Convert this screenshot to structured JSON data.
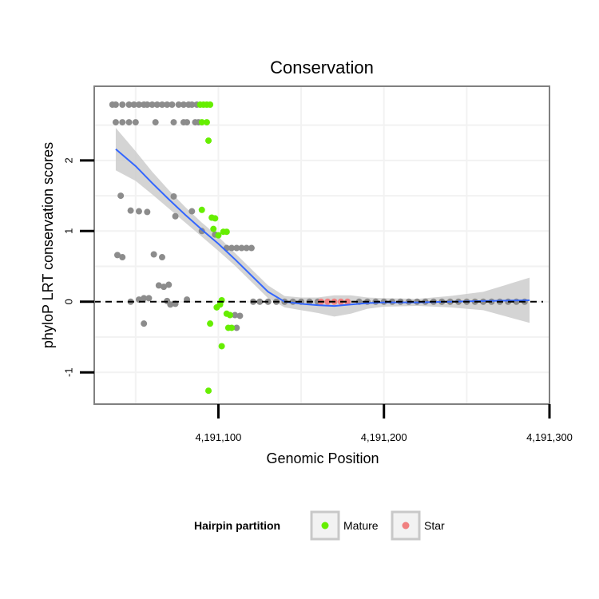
{
  "chart_data": {
    "type": "scatter",
    "title": "Conservation",
    "xlabel": "Genomic Position",
    "ylabel": "phyloP LRT conservation scores",
    "xlim": [
      4191025,
      4191300
    ],
    "ylim": [
      -1.45,
      3.05
    ],
    "x_ticks": [
      {
        "value": 4191100,
        "label": "4,191,100"
      },
      {
        "value": 4191200,
        "label": "4,191,200"
      },
      {
        "value": 4191300,
        "label": "4,191,300"
      }
    ],
    "y_ticks": [
      {
        "value": -1,
        "label": "-1"
      },
      {
        "value": 0,
        "label": "0"
      },
      {
        "value": 1,
        "label": "1"
      },
      {
        "value": 2,
        "label": "2"
      }
    ],
    "reference_line": {
      "y": 0,
      "style": "dashed"
    },
    "colors": {
      "other": "#8c8c8c",
      "mature": "#66ee00",
      "star": "#f08080",
      "smooth_line": "#3366ff",
      "ribbon": "#cccccc",
      "ref_line": "#000000",
      "panel_border": "#808080",
      "grid": "#f2f2f2"
    },
    "legend": {
      "title": "Hairpin partition",
      "position": "bottom",
      "entries": [
        {
          "label": "Mature",
          "color": "#66ee00"
        },
        {
          "label": "Star",
          "color": "#f08080"
        }
      ]
    },
    "series": [
      {
        "name": "Other",
        "points": [
          [
            4191036,
            2.79
          ],
          [
            4191038,
            2.79
          ],
          [
            4191042,
            2.79
          ],
          [
            4191046,
            2.79
          ],
          [
            4191049,
            2.79
          ],
          [
            4191052,
            2.79
          ],
          [
            4191055,
            2.79
          ],
          [
            4191057,
            2.79
          ],
          [
            4191060,
            2.79
          ],
          [
            4191063,
            2.79
          ],
          [
            4191066,
            2.79
          ],
          [
            4191069,
            2.79
          ],
          [
            4191072,
            2.79
          ],
          [
            4191076,
            2.79
          ],
          [
            4191079,
            2.79
          ],
          [
            4191082,
            2.79
          ],
          [
            4191084,
            2.79
          ],
          [
            4191087,
            2.79
          ],
          [
            4191038,
            2.54
          ],
          [
            4191042,
            2.54
          ],
          [
            4191046,
            2.54
          ],
          [
            4191050,
            2.54
          ],
          [
            4191062,
            2.54
          ],
          [
            4191073,
            2.54
          ],
          [
            4191079,
            2.54
          ],
          [
            4191081,
            2.54
          ],
          [
            4191086,
            2.54
          ],
          [
            4191088,
            2.54
          ],
          [
            4191041,
            1.5
          ],
          [
            4191073,
            1.49
          ],
          [
            4191047,
            1.29
          ],
          [
            4191052,
            1.28
          ],
          [
            4191057,
            1.27
          ],
          [
            4191074,
            1.21
          ],
          [
            4191084,
            1.28
          ],
          [
            4191090,
            1.0
          ],
          [
            4191098,
            0.95
          ],
          [
            4191105,
            0.76
          ],
          [
            4191108,
            0.76
          ],
          [
            4191111,
            0.76
          ],
          [
            4191114,
            0.76
          ],
          [
            4191117,
            0.76
          ],
          [
            4191120,
            0.76
          ],
          [
            4191039,
            0.66
          ],
          [
            4191042,
            0.63
          ],
          [
            4191066,
            0.63
          ],
          [
            4191061,
            0.67
          ],
          [
            4191064,
            0.23
          ],
          [
            4191067,
            0.21
          ],
          [
            4191070,
            0.24
          ],
          [
            4191052,
            0.03
          ],
          [
            4191055,
            0.05
          ],
          [
            4191058,
            0.05
          ],
          [
            4191047,
            0.0
          ],
          [
            4191069,
            0.01
          ],
          [
            4191071,
            -0.04
          ],
          [
            4191074,
            -0.03
          ],
          [
            4191081,
            0.03
          ],
          [
            4191055,
            -0.31
          ],
          [
            4191110,
            -0.19
          ],
          [
            4191113,
            -0.2
          ],
          [
            4191111,
            -0.37
          ],
          [
            4191121,
            0.0
          ],
          [
            4191125,
            0.0
          ],
          [
            4191130,
            0.0
          ],
          [
            4191135,
            0.0
          ],
          [
            4191140,
            0.0
          ],
          [
            4191145,
            0.0
          ],
          [
            4191150,
            0.0
          ],
          [
            4191155,
            0.0
          ],
          [
            4191160,
            0.0
          ],
          [
            4191185,
            0.0
          ],
          [
            4191190,
            0.0
          ],
          [
            4191195,
            0.0
          ],
          [
            4191200,
            0.0
          ],
          [
            4191205,
            0.0
          ],
          [
            4191210,
            0.0
          ],
          [
            4191215,
            0.0
          ],
          [
            4191220,
            0.0
          ],
          [
            4191225,
            0.0
          ],
          [
            4191230,
            0.0
          ],
          [
            4191235,
            0.0
          ],
          [
            4191240,
            0.0
          ],
          [
            4191245,
            0.0
          ],
          [
            4191250,
            0.0
          ],
          [
            4191255,
            0.0
          ],
          [
            4191260,
            0.0
          ],
          [
            4191265,
            0.0
          ],
          [
            4191270,
            0.0
          ],
          [
            4191275,
            0.0
          ],
          [
            4191280,
            0.0
          ],
          [
            4191285,
            0.0
          ]
        ]
      },
      {
        "name": "Mature",
        "points": [
          [
            4191089,
            2.79
          ],
          [
            4191091,
            2.79
          ],
          [
            4191093,
            2.79
          ],
          [
            4191095,
            2.79
          ],
          [
            4191090,
            2.54
          ],
          [
            4191093,
            2.54
          ],
          [
            4191094,
            2.28
          ],
          [
            4191090,
            1.3
          ],
          [
            4191096,
            1.19
          ],
          [
            4191098,
            1.18
          ],
          [
            4191097,
            1.03
          ],
          [
            4191103,
            0.99
          ],
          [
            4191105,
            0.99
          ],
          [
            4191100,
            0.94
          ],
          [
            4191102,
            0.02
          ],
          [
            4191099,
            -0.08
          ],
          [
            4191101,
            -0.04
          ],
          [
            4191105,
            -0.17
          ],
          [
            4191107,
            -0.19
          ],
          [
            4191095,
            -0.31
          ],
          [
            4191106,
            -0.37
          ],
          [
            4191108,
            -0.37
          ],
          [
            4191102,
            -0.63
          ],
          [
            4191094,
            -1.26
          ]
        ]
      },
      {
        "name": "Star",
        "points": [
          [
            4191162,
            0.0
          ],
          [
            4191166,
            0.0
          ],
          [
            4191170,
            0.0
          ],
          [
            4191174,
            0.0
          ],
          [
            4191178,
            0.0
          ]
        ]
      }
    ],
    "smooth": {
      "method": "loess",
      "x": [
        4191038,
        4191050,
        4191060,
        4191070,
        4191080,
        4191090,
        4191100,
        4191110,
        4191120,
        4191130,
        4191140,
        4191150,
        4191160,
        4191170,
        4191180,
        4191190,
        4191200,
        4191220,
        4191240,
        4191260,
        4191288
      ],
      "y": [
        2.16,
        1.92,
        1.68,
        1.45,
        1.23,
        1.02,
        0.82,
        0.6,
        0.37,
        0.14,
        0.0,
        -0.03,
        -0.05,
        -0.06,
        -0.04,
        -0.02,
        -0.01,
        -0.01,
        0.0,
        0.01,
        0.02
      ],
      "lower": [
        1.86,
        1.71,
        1.52,
        1.32,
        1.12,
        0.92,
        0.72,
        0.51,
        0.28,
        0.05,
        -0.08,
        -0.12,
        -0.16,
        -0.21,
        -0.17,
        -0.1,
        -0.07,
        -0.06,
        -0.08,
        -0.12,
        -0.3
      ],
      "upper": [
        2.46,
        2.13,
        1.84,
        1.58,
        1.34,
        1.12,
        0.92,
        0.69,
        0.46,
        0.23,
        0.08,
        0.06,
        0.06,
        0.09,
        0.09,
        0.06,
        0.05,
        0.04,
        0.08,
        0.14,
        0.34
      ]
    }
  }
}
